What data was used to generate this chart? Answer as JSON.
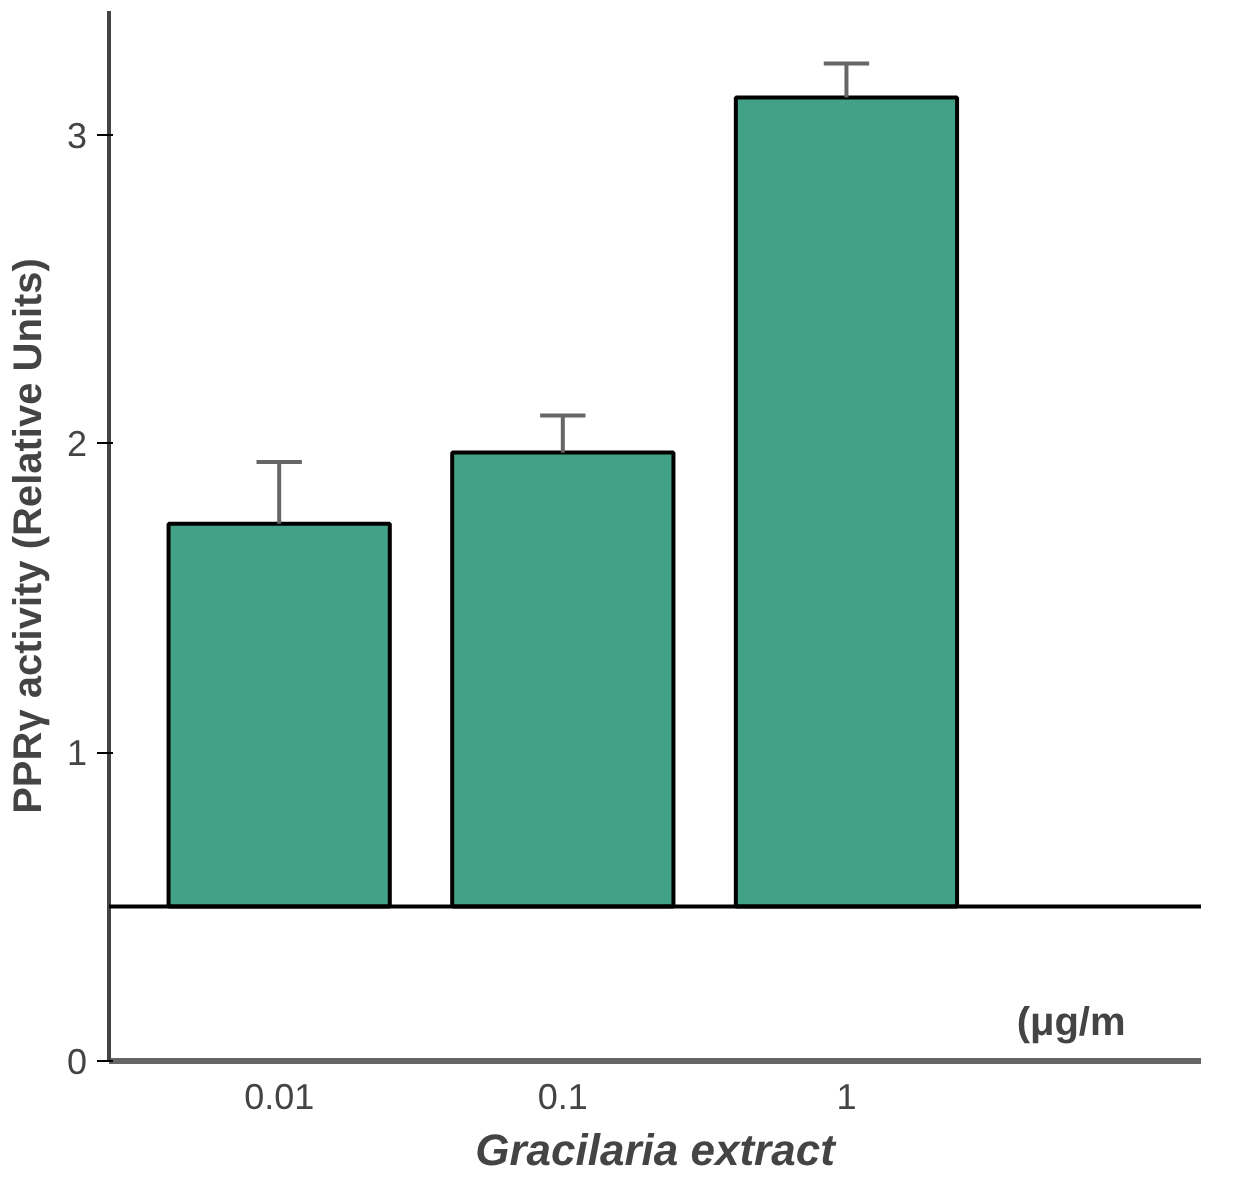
{
  "chart_data": {
    "type": "bar",
    "ylabel": "PPRγ activity (Relative Units)",
    "xlabel": "Gracilaria extract",
    "categories": [
      "0.01",
      "0.1",
      "1"
    ],
    "base": [
      0.5,
      0.5,
      0.5
    ],
    "values": [
      1.24,
      1.47,
      2.62
    ],
    "errors": [
      [
        1.74,
        1.94
      ],
      [
        1.97,
        2.09
      ],
      [
        3.12,
        3.23
      ]
    ],
    "color": "#42a287",
    "ylim": [
      0,
      3.4
    ],
    "yticks": [
      0,
      1,
      2,
      3
    ],
    "ref_lines": [
      {
        "axis": "y",
        "value": 0.5,
        "color": "#000000"
      }
    ],
    "annotations": [
      "(μg/m"
    ],
    "grid": false
  }
}
